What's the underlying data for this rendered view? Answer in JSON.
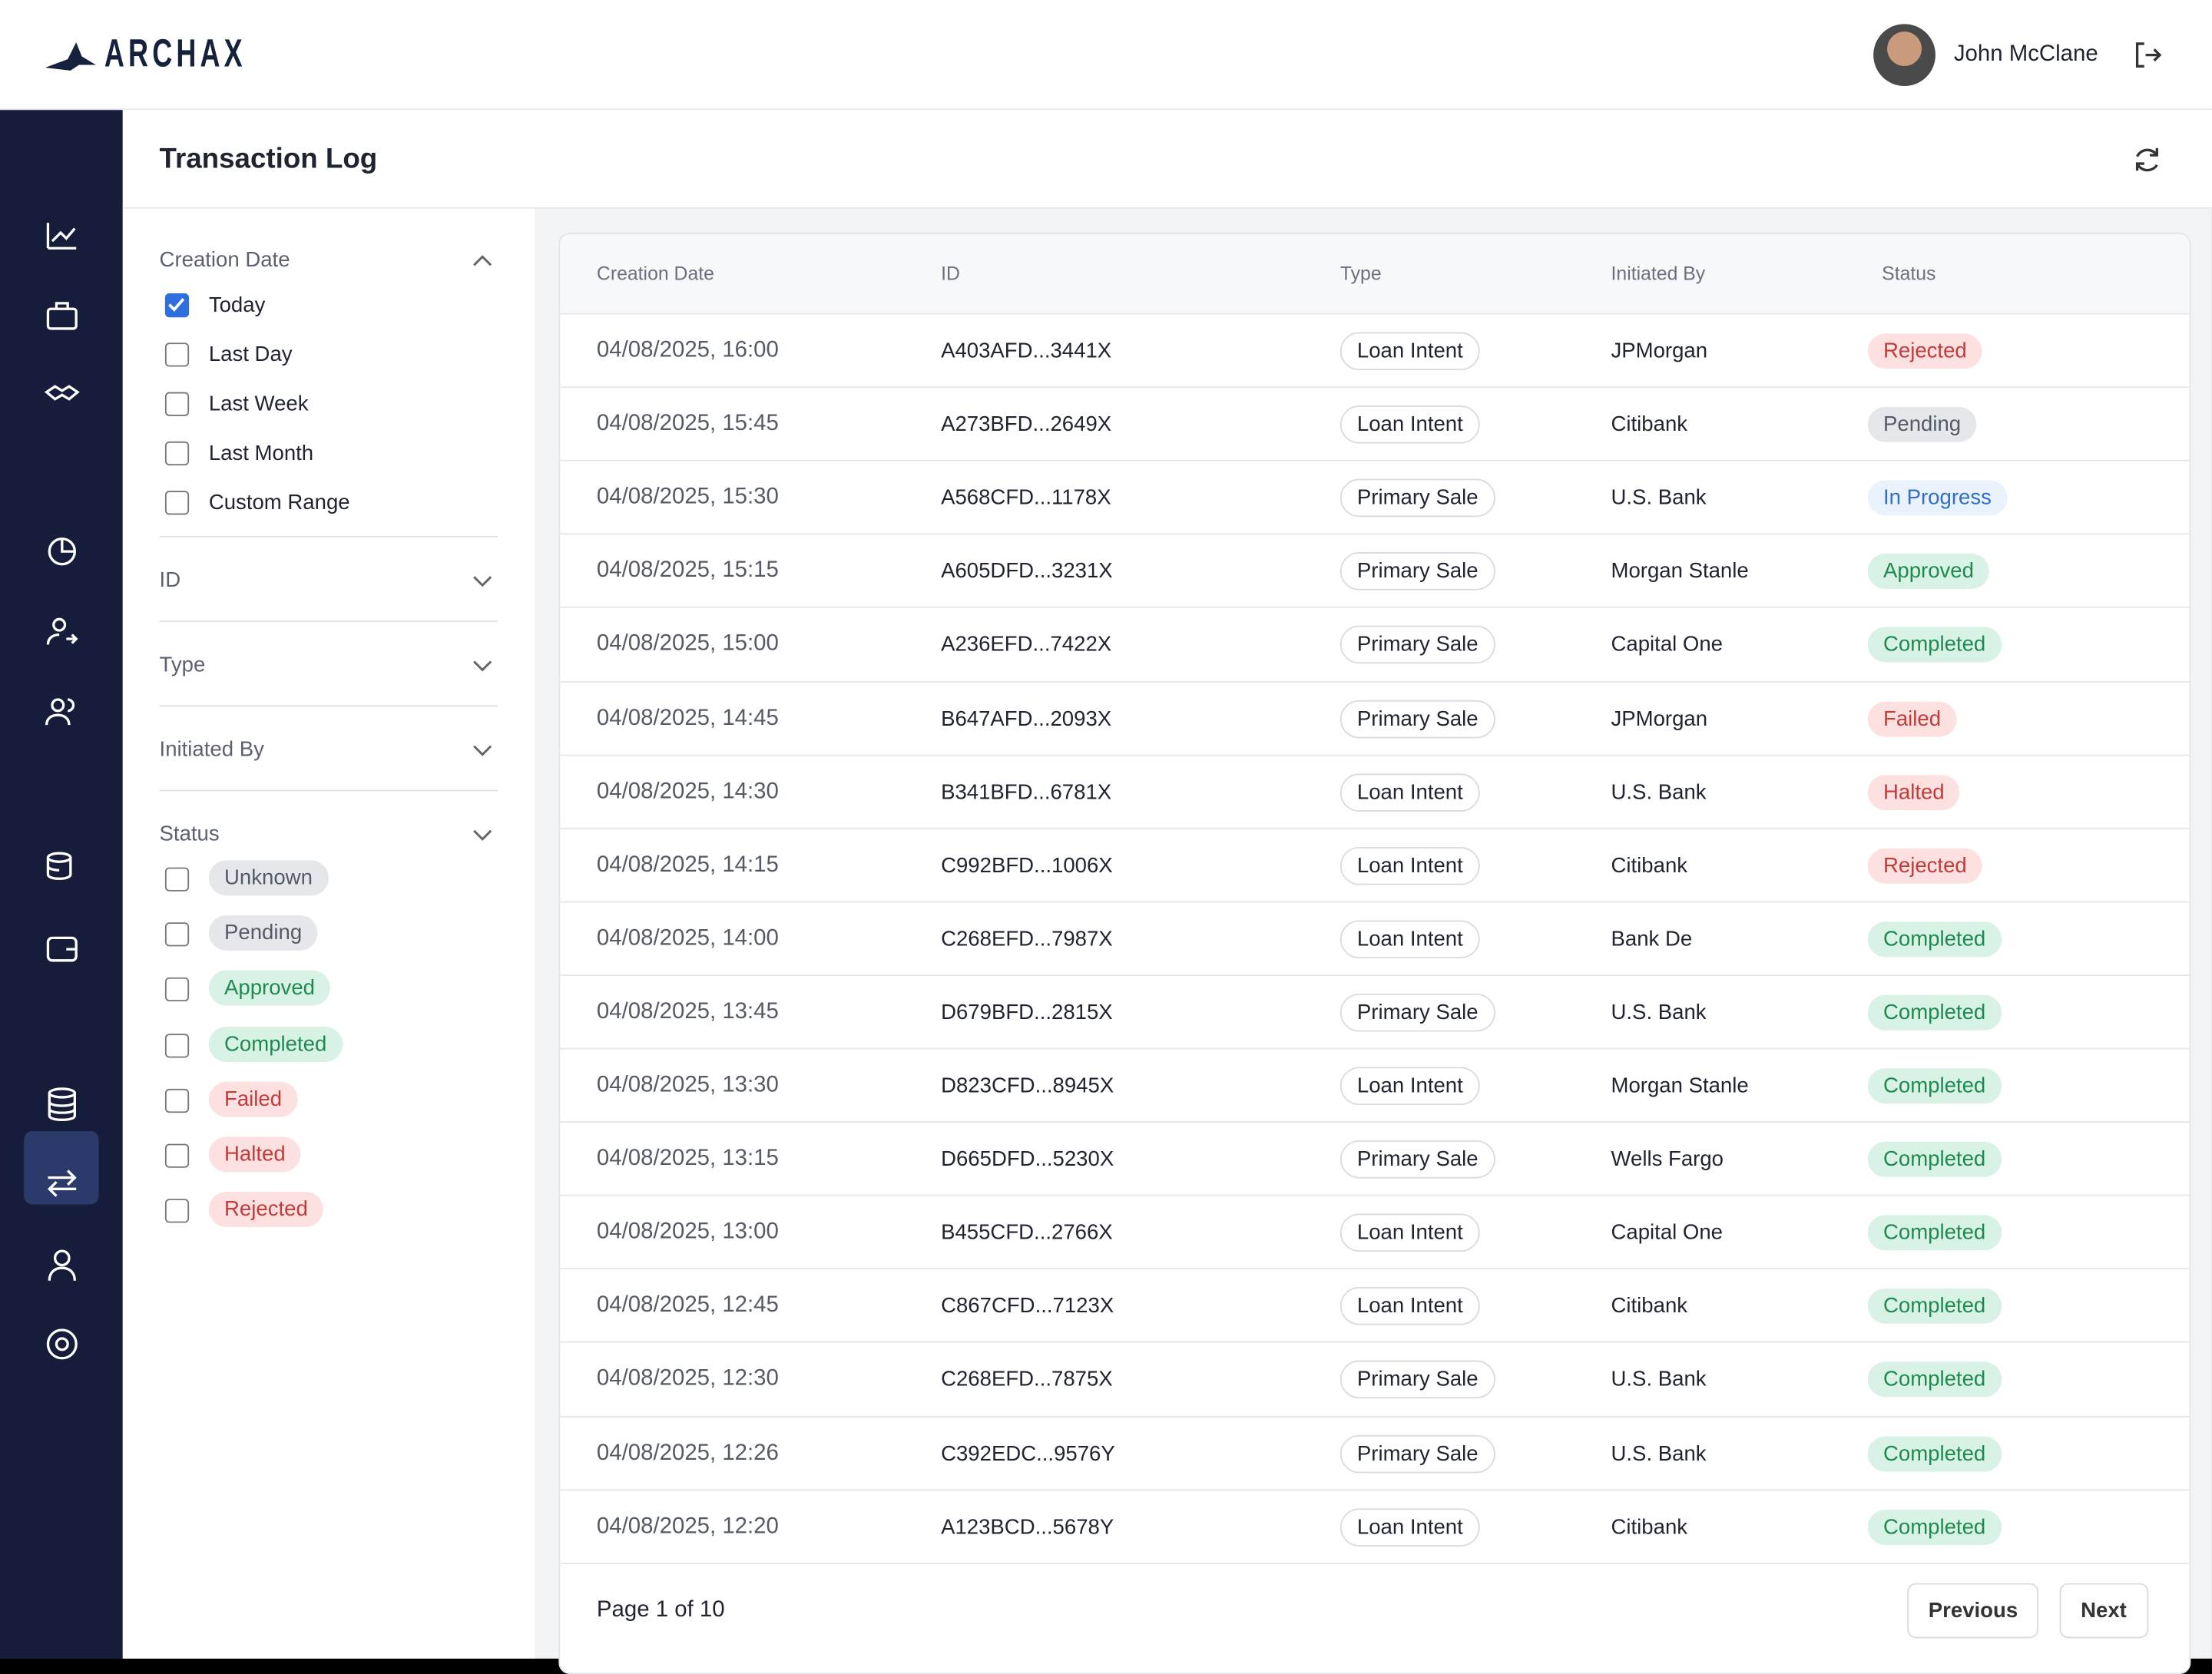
{
  "header": {
    "logo": "ARCHAX",
    "user_name": "John McClane"
  },
  "page": {
    "title": "Transaction Log"
  },
  "filters": [
    {
      "title": "Creation Date",
      "options": [
        "Today",
        "Last Day",
        "Last Week",
        "Last Month",
        "Custom Range"
      ],
      "checked": [
        true,
        false,
        false,
        false,
        false
      ]
    },
    {
      "title": "ID"
    },
    {
      "title": "Type"
    },
    {
      "title": "Initiated By"
    },
    {
      "title": "Status",
      "options": [
        "Unknown",
        "Pending",
        "Approved",
        "Completed",
        "Failed",
        "Halted",
        "Rejected"
      ],
      "checked": [
        false,
        false,
        false,
        false,
        false,
        false,
        false
      ]
    }
  ],
  "table": {
    "columns": [
      "Creation Date",
      "ID",
      "Type",
      "Initiated By",
      "Status"
    ],
    "rows": [
      [
        "04/08/2025, 16:00",
        "A403AFD...3441X",
        "Loan Intent",
        "JPMorgan",
        "Rejected"
      ],
      [
        "04/08/2025, 15:45",
        "A273BFD...2649X",
        "Loan Intent",
        "Citibank",
        "Pending"
      ],
      [
        "04/08/2025, 15:30",
        "A568CFD...1178X",
        "Primary Sale",
        "U.S. Bank",
        "In Progress"
      ],
      [
        "04/08/2025, 15:15",
        "A605DFD...3231X",
        "Primary Sale",
        "Morgan Stanle",
        "Approved"
      ],
      [
        "04/08/2025, 15:00",
        "A236EFD...7422X",
        "Primary Sale",
        "Capital One",
        "Completed"
      ],
      [
        "04/08/2025, 14:45",
        "B647AFD...2093X",
        "Primary Sale",
        "JPMorgan",
        "Failed"
      ],
      [
        "04/08/2025, 14:30",
        "B341BFD...6781X",
        "Loan Intent",
        "U.S. Bank",
        "Halted"
      ],
      [
        "04/08/2025, 14:15",
        "C992BFD...1006X",
        "Loan Intent",
        "Citibank",
        "Rejected"
      ],
      [
        "04/08/2025, 14:00",
        "C268EFD...7987X",
        "Loan Intent",
        "Bank De",
        "Completed"
      ],
      [
        "04/08/2025, 13:45",
        "D679BFD...2815X",
        "Primary Sale",
        "U.S. Bank",
        "Completed"
      ],
      [
        "04/08/2025, 13:30",
        "D823CFD...8945X",
        "Loan Intent",
        "Morgan Stanle",
        "Completed"
      ],
      [
        "04/08/2025, 13:15",
        "D665DFD...5230X",
        "Primary Sale",
        "Wells Fargo",
        "Completed"
      ],
      [
        "04/08/2025, 13:00",
        "B455CFD...2766X",
        "Loan Intent",
        "Capital One",
        "Completed"
      ],
      [
        "04/08/2025, 12:45",
        "C867CFD...7123X",
        "Loan Intent",
        "Citibank",
        "Completed"
      ],
      [
        "04/08/2025, 12:30",
        "C268EFD...7875X",
        "Primary Sale",
        "U.S. Bank",
        "Completed"
      ],
      [
        "04/08/2025, 12:26",
        "C392EDC...9576Y",
        "Primary Sale",
        "U.S. Bank",
        "Completed"
      ],
      [
        "04/08/2025, 12:20",
        "A123BCD...5678Y",
        "Loan Intent",
        "Citibank",
        "Completed"
      ]
    ]
  },
  "pagination": {
    "label": "Page 1 of 10",
    "previous": "Previous",
    "next": "Next"
  }
}
